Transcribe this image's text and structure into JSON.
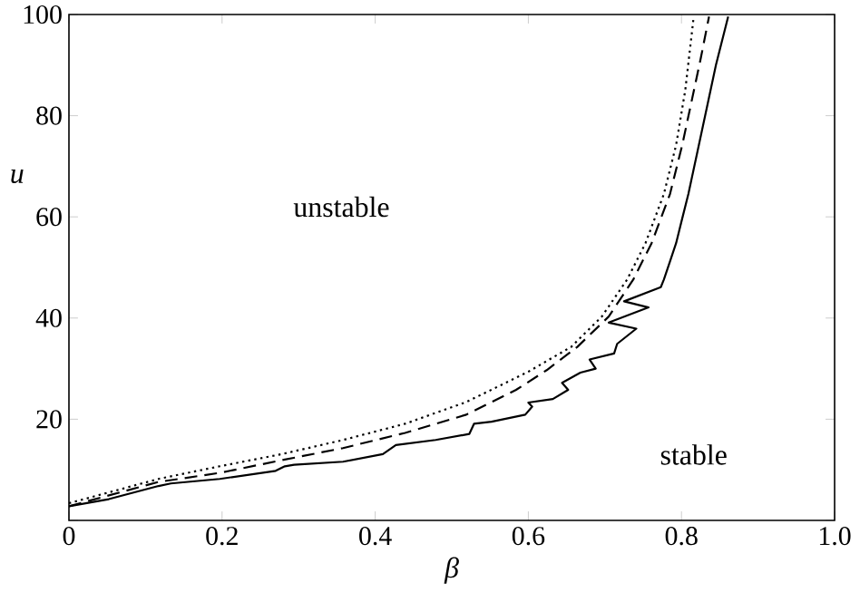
{
  "chart_data": {
    "type": "line",
    "xlabel": "β",
    "ylabel": "u",
    "xlim": [
      0,
      1
    ],
    "ylim": [
      0,
      100
    ],
    "xticks": [
      0,
      0.2,
      0.4,
      0.6,
      0.8,
      {
        "value": 1,
        "label": "1.0"
      }
    ],
    "yticks": [
      {
        "value": 0,
        "label": null
      },
      20,
      40,
      60,
      80,
      100
    ],
    "series": [
      {
        "color": "#000000",
        "line_style": "solid",
        "x": [
          0,
          0.052,
          0.117,
          0.133,
          0.197,
          0.27,
          0.282,
          0.294,
          0.358,
          0.41,
          0.427,
          0.479,
          0.523,
          0.529,
          0.552,
          0.596,
          0.605,
          0.6,
          0.632,
          0.652,
          0.644,
          0.668,
          0.688,
          0.68,
          0.712,
          0.716,
          0.741,
          0.705,
          0.757,
          0.725,
          0.773,
          0.777,
          0.785,
          0.793,
          0.801,
          0.809,
          0.821,
          0.833,
          0.845,
          0.861
        ],
        "values": [
          2.8,
          4.2,
          6.8,
          7.3,
          8.2,
          9.8,
          10.7,
          11.0,
          11.6,
          13.1,
          14.9,
          15.9,
          17.1,
          19.1,
          19.5,
          20.9,
          22.5,
          23.3,
          24.0,
          25.8,
          27.2,
          29.2,
          30.0,
          31.8,
          33.0,
          34.9,
          37.9,
          39.1,
          42.1,
          43.3,
          46.1,
          47.6,
          51.2,
          54.8,
          59.7,
          64.5,
          73.0,
          81.5,
          90.0,
          99.6
        ]
      },
      {
        "color": "#000000",
        "line_style": "dashed",
        "x": [
          0,
          0.117,
          0.197,
          0.278,
          0.358,
          0.439,
          0.519,
          0.584,
          0.624,
          0.664,
          0.705,
          0.737,
          0.761,
          0.785,
          0.801,
          0.813,
          0.825,
          0.836
        ],
        "values": [
          2.8,
          7.6,
          9.4,
          11.9,
          14.3,
          17.3,
          20.9,
          25.8,
          29.7,
          34.3,
          40.3,
          47.6,
          54.8,
          64.5,
          74.2,
          82.7,
          91.2,
          99.6
        ]
      },
      {
        "color": "#000000",
        "line_style": "dotted",
        "x": [
          0,
          0.117,
          0.197,
          0.278,
          0.358,
          0.439,
          0.519,
          0.6,
          0.656,
          0.696,
          0.729,
          0.753,
          0.777,
          0.793,
          0.805,
          0.816
        ],
        "values": [
          3.4,
          8.2,
          10.7,
          13.1,
          15.9,
          19.1,
          23.4,
          29.4,
          34.3,
          40.3,
          47.6,
          54.8,
          64.5,
          74.2,
          85.1,
          99.6
        ]
      }
    ],
    "annotations": [
      "unstable",
      "stable"
    ]
  }
}
